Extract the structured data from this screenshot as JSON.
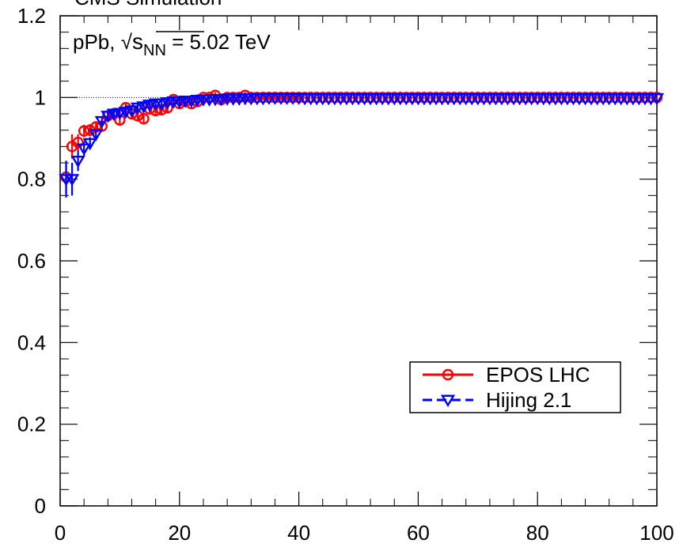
{
  "chart_data": {
    "type": "scatter",
    "title": "CMS Simulation",
    "annotation": {
      "prefix": "pPb, ",
      "sqrt": "√",
      "s": "s",
      "subscript": "NN",
      "suffix": " = 5.02 TeV"
    },
    "xlabel": "",
    "ylabel": "",
    "xlim": [
      0,
      100
    ],
    "ylim": [
      0,
      1.2
    ],
    "x_ticks": [
      "0",
      "20",
      "40",
      "60",
      "80",
      "100"
    ],
    "y_ticks": [
      "0",
      "0.2",
      "0.4",
      "0.6",
      "0.8",
      "1",
      "1.2"
    ],
    "reference_line": 1.0,
    "legend_position": "center-right",
    "series": [
      {
        "name": "EPOS LHC",
        "color": "#ff0000",
        "marker": "open-circle",
        "line": "solid",
        "x": [
          1,
          2,
          3,
          4,
          5,
          6,
          7,
          8,
          9,
          10,
          11,
          12,
          13,
          14,
          15,
          16,
          17,
          18,
          19,
          20,
          21,
          22,
          23,
          24,
          25,
          26,
          27,
          28,
          29,
          30,
          31,
          32,
          33,
          34,
          35,
          36,
          37,
          38,
          39,
          40
        ],
        "y": [
          0.805,
          0.88,
          0.89,
          0.918,
          0.92,
          0.928,
          0.93,
          0.955,
          0.96,
          0.945,
          0.975,
          0.96,
          0.955,
          0.948,
          0.972,
          0.968,
          0.97,
          0.975,
          0.995,
          0.985,
          0.99,
          0.985,
          0.99,
          1.0,
          1.0,
          1.005,
          0.995,
          1.0,
          1.0,
          1.0,
          1.005,
          1.0,
          1.0,
          1.0,
          1.0,
          1.0,
          1.0,
          1.0,
          1.0,
          1.0
        ],
        "y_err": [
          0.04,
          0.03,
          0.02,
          0.015,
          0.015,
          0.012,
          0.012,
          0.012,
          0.012,
          0.012,
          0.012,
          0.012,
          0.012,
          0.012,
          0.01,
          0.01,
          0.01,
          0.01,
          0.01,
          0.01,
          0.008,
          0.008,
          0.008,
          0.008,
          0.008,
          0.008,
          0.008,
          0.008,
          0.008,
          0.008,
          0.008,
          0.008,
          0.006,
          0.006,
          0.006,
          0.006,
          0.006,
          0.006,
          0.006,
          0.006
        ],
        "tail_value": 1.0
      },
      {
        "name": "Hijing 2.1",
        "color": "#0000ff",
        "marker": "open-triangle-down",
        "line": "dashed",
        "x": [
          1,
          2,
          3,
          4,
          5,
          6,
          7,
          8,
          9,
          10,
          11,
          12,
          13,
          14,
          15,
          16,
          17,
          18,
          19,
          20,
          21,
          22,
          23,
          24,
          25,
          26,
          27,
          28,
          29,
          30,
          31,
          32,
          33,
          34,
          35,
          36,
          37,
          38,
          39,
          40
        ],
        "y": [
          0.8,
          0.8,
          0.845,
          0.875,
          0.888,
          0.91,
          0.942,
          0.955,
          0.96,
          0.962,
          0.965,
          0.968,
          0.975,
          0.978,
          0.982,
          0.985,
          0.985,
          0.988,
          0.99,
          0.99,
          0.992,
          0.992,
          0.994,
          0.995,
          0.995,
          0.996,
          0.996,
          0.997,
          0.997,
          0.997,
          0.998,
          0.998,
          0.998,
          0.998,
          0.999,
          0.999,
          0.999,
          0.999,
          0.999,
          0.999
        ],
        "y_err": [
          0.045,
          0.04,
          0.025,
          0.018,
          0.015,
          0.012,
          0.012,
          0.01,
          0.01,
          0.01,
          0.01,
          0.01,
          0.008,
          0.008,
          0.008,
          0.008,
          0.008,
          0.008,
          0.008,
          0.008,
          0.006,
          0.006,
          0.006,
          0.006,
          0.006,
          0.006,
          0.006,
          0.006,
          0.006,
          0.006,
          0.006,
          0.006,
          0.005,
          0.005,
          0.005,
          0.005,
          0.005,
          0.005,
          0.005,
          0.005
        ],
        "tail_value": 0.998
      }
    ]
  }
}
